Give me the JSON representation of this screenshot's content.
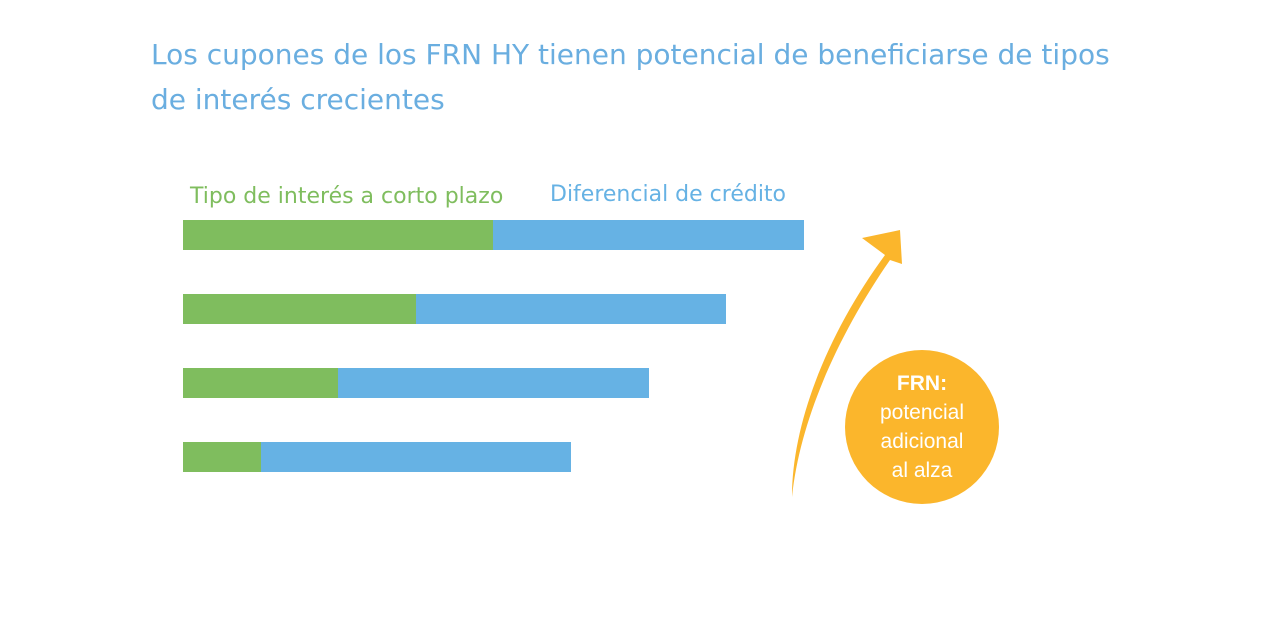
{
  "title": "Los cupones de los FRN HY tienen potencial de beneficiarse de tipos de interés crecientes",
  "colors": {
    "title": "#6aaee0",
    "short_rate": "#7fbd5e",
    "credit_spread": "#66b2e4",
    "accent": "#fbb62c"
  },
  "chart_data": {
    "type": "bar",
    "orientation": "horizontal",
    "stacked": true,
    "axes_visible": false,
    "series": [
      {
        "name": "Tipo de interés a corto plazo",
        "values": [
          4,
          3,
          2,
          1
        ]
      },
      {
        "name": "Diferencial de crédito",
        "values": [
          4,
          4,
          4,
          4
        ]
      }
    ],
    "xlim": [
      0,
      8
    ]
  },
  "arrow": {
    "icon": "curved-up-arrow-icon"
  },
  "badge": {
    "title": "FRN:",
    "line1": "potencial",
    "line2": "adicional",
    "line3": "al alza"
  }
}
